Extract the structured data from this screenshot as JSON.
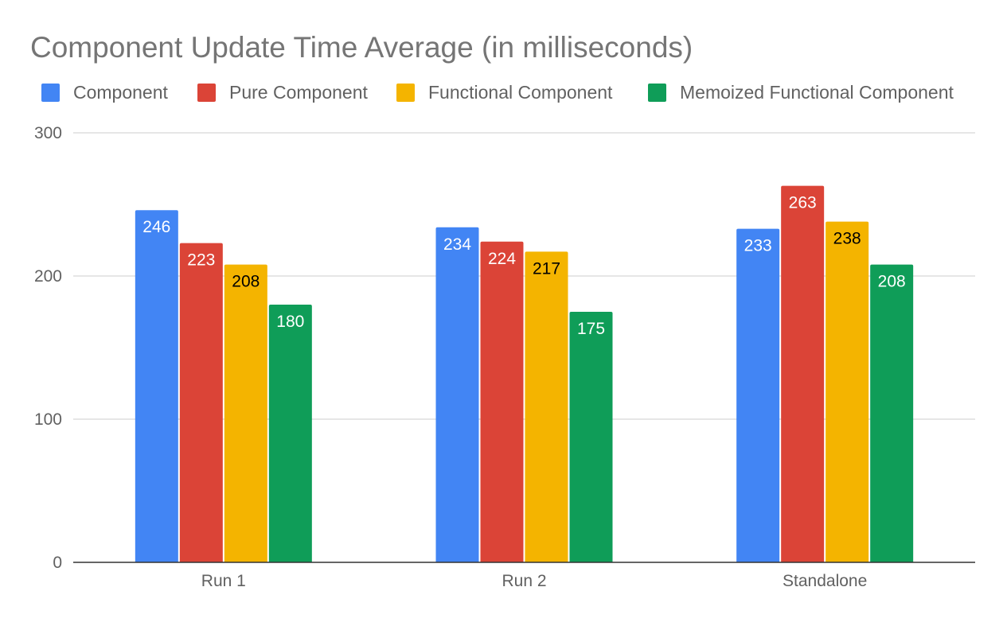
{
  "chart_data": {
    "type": "bar",
    "title": "Component Update Time Average (in milliseconds)",
    "xlabel": "",
    "ylabel": "",
    "categories": [
      "Run 1",
      "Run 2",
      "Standalone"
    ],
    "series": [
      {
        "name": "Component",
        "color": "#4285f4",
        "label_color": "#ffffff",
        "values": [
          246,
          234,
          233
        ]
      },
      {
        "name": "Pure Component",
        "color": "#db4437",
        "label_color": "#ffffff",
        "values": [
          223,
          224,
          263
        ]
      },
      {
        "name": "Functional Component",
        "color": "#f4b400",
        "label_color": "#000000",
        "values": [
          208,
          217,
          238
        ]
      },
      {
        "name": "Memoized Functional Component",
        "color": "#0f9d58",
        "label_color": "#ffffff",
        "values": [
          180,
          175,
          208
        ]
      }
    ],
    "ylim": [
      0,
      300
    ],
    "yticks": [
      0,
      100,
      200,
      300
    ],
    "grid": true,
    "legend_position": "top"
  }
}
